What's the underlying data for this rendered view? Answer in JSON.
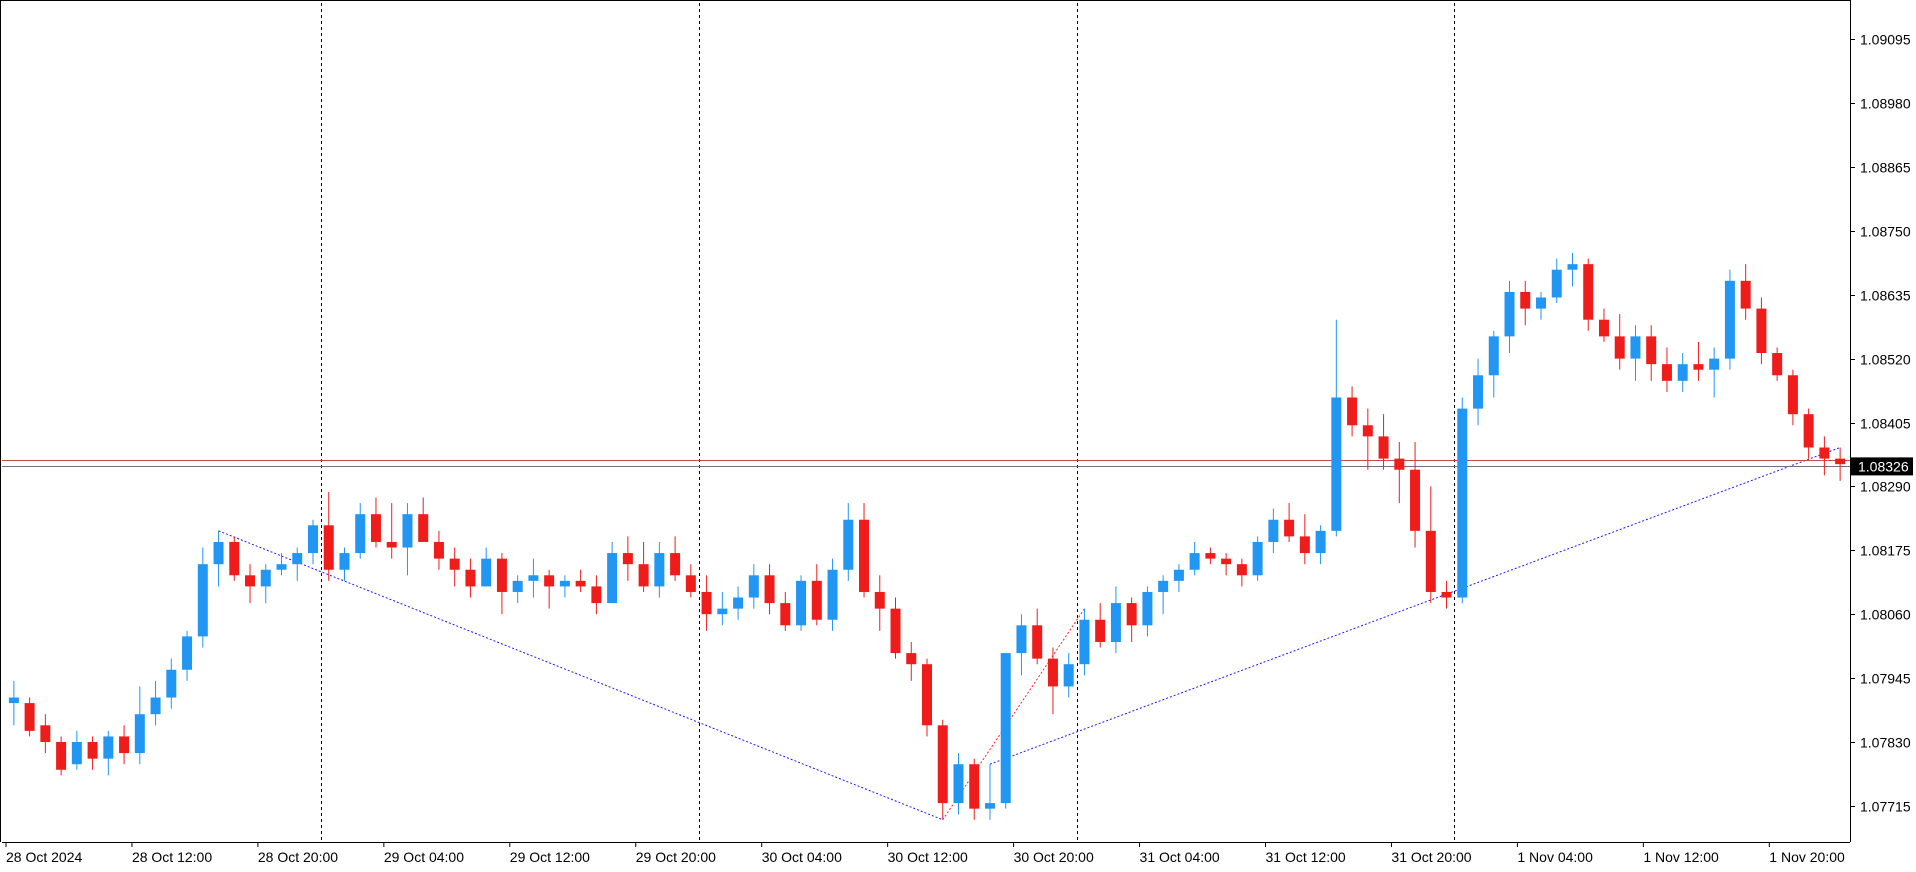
{
  "chart_data": {
    "type": "candlestick",
    "title": "",
    "xlabel": "",
    "ylabel": "",
    "ylim": [
      1.0765,
      1.0916
    ],
    "y_ticks": [
      "1.09095",
      "1.08980",
      "1.08865",
      "1.08750",
      "1.08635",
      "1.08520",
      "1.08405",
      "1.08290",
      "1.08175",
      "1.08060",
      "1.07945",
      "1.07830",
      "1.07715"
    ],
    "x_ticks": [
      "28 Oct 2024",
      "28 Oct 12:00",
      "28 Oct 20:00",
      "29 Oct 04:00",
      "29 Oct 12:00",
      "29 Oct 20:00",
      "30 Oct 04:00",
      "30 Oct 12:00",
      "30 Oct 20:00",
      "31 Oct 04:00",
      "31 Oct 12:00",
      "31 Oct 20:00",
      "1 Nov 04:00",
      "1 Nov 12:00",
      "1 Nov 20:00"
    ],
    "session_separators": [
      "28 Oct 20:00",
      "29 Oct 20:00",
      "30 Oct 20:00",
      "31 Oct 20:00"
    ],
    "current_price": "1.08326",
    "price_lines": [
      1.08338,
      1.08326
    ],
    "candle_period": "1h",
    "colors": {
      "bull": "#2196f3",
      "bear": "#ef1c1c",
      "grid": "#000000",
      "price_label_bg": "#000000",
      "price_line": "#c44b4b",
      "trend_blue": "#1a1aff",
      "trend_red": "#ff2020"
    },
    "series": [
      {
        "time": "28 Oct 00:00",
        "open": 1.079,
        "high": 1.0794,
        "low": 1.0786,
        "close": 1.0791
      },
      {
        "time": "28 Oct 01:00",
        "open": 1.079,
        "high": 1.0791,
        "low": 1.0784,
        "close": 1.0785
      },
      {
        "time": "28 Oct 02:00",
        "open": 1.0786,
        "high": 1.0788,
        "low": 1.0781,
        "close": 1.0783
      },
      {
        "time": "28 Oct 03:00",
        "open": 1.0783,
        "high": 1.0784,
        "low": 1.0777,
        "close": 1.0778
      },
      {
        "time": "28 Oct 04:00",
        "open": 1.0779,
        "high": 1.0785,
        "low": 1.0778,
        "close": 1.0783
      },
      {
        "time": "28 Oct 05:00",
        "open": 1.0783,
        "high": 1.0784,
        "low": 1.0778,
        "close": 1.078
      },
      {
        "time": "28 Oct 06:00",
        "open": 1.078,
        "high": 1.0785,
        "low": 1.0777,
        "close": 1.0784
      },
      {
        "time": "28 Oct 07:00",
        "open": 1.0784,
        "high": 1.0786,
        "low": 1.0779,
        "close": 1.0781
      },
      {
        "time": "28 Oct 08:00",
        "open": 1.0781,
        "high": 1.0793,
        "low": 1.0779,
        "close": 1.0788
      },
      {
        "time": "28 Oct 09:00",
        "open": 1.0788,
        "high": 1.0794,
        "low": 1.0786,
        "close": 1.0791
      },
      {
        "time": "28 Oct 10:00",
        "open": 1.0791,
        "high": 1.0798,
        "low": 1.0789,
        "close": 1.0796
      },
      {
        "time": "28 Oct 11:00",
        "open": 1.0796,
        "high": 1.0803,
        "low": 1.0794,
        "close": 1.0802
      },
      {
        "time": "28 Oct 12:00",
        "open": 1.0802,
        "high": 1.0818,
        "low": 1.08,
        "close": 1.0815
      },
      {
        "time": "28 Oct 13:00",
        "open": 1.0815,
        "high": 1.0821,
        "low": 1.0811,
        "close": 1.0819
      },
      {
        "time": "28 Oct 14:00",
        "open": 1.0819,
        "high": 1.082,
        "low": 1.0812,
        "close": 1.0813
      },
      {
        "time": "28 Oct 15:00",
        "open": 1.0813,
        "high": 1.0815,
        "low": 1.0808,
        "close": 1.0811
      },
      {
        "time": "28 Oct 16:00",
        "open": 1.0811,
        "high": 1.0815,
        "low": 1.0808,
        "close": 1.0814
      },
      {
        "time": "28 Oct 17:00",
        "open": 1.0814,
        "high": 1.0817,
        "low": 1.0813,
        "close": 1.0815
      },
      {
        "time": "28 Oct 18:00",
        "open": 1.0815,
        "high": 1.0818,
        "low": 1.0812,
        "close": 1.0817
      },
      {
        "time": "28 Oct 19:00",
        "open": 1.0817,
        "high": 1.0823,
        "low": 1.0815,
        "close": 1.0822
      },
      {
        "time": "28 Oct 20:00",
        "open": 1.0822,
        "high": 1.0828,
        "low": 1.0812,
        "close": 1.0814
      },
      {
        "time": "28 Oct 21:00",
        "open": 1.0814,
        "high": 1.0818,
        "low": 1.0812,
        "close": 1.0817
      },
      {
        "time": "28 Oct 22:00",
        "open": 1.0817,
        "high": 1.0826,
        "low": 1.0816,
        "close": 1.0824
      },
      {
        "time": "28 Oct 23:00",
        "open": 1.0824,
        "high": 1.0827,
        "low": 1.0818,
        "close": 1.0819
      },
      {
        "time": "29 Oct 00:00",
        "open": 1.0819,
        "high": 1.0826,
        "low": 1.0816,
        "close": 1.0818
      },
      {
        "time": "29 Oct 01:00",
        "open": 1.0818,
        "high": 1.0826,
        "low": 1.0813,
        "close": 1.0824
      },
      {
        "time": "29 Oct 02:00",
        "open": 1.0824,
        "high": 1.0827,
        "low": 1.0819,
        "close": 1.0819
      },
      {
        "time": "29 Oct 03:00",
        "open": 1.0819,
        "high": 1.0821,
        "low": 1.0814,
        "close": 1.0816
      },
      {
        "time": "29 Oct 04:00",
        "open": 1.0816,
        "high": 1.0818,
        "low": 1.0811,
        "close": 1.0814
      },
      {
        "time": "29 Oct 05:00",
        "open": 1.0814,
        "high": 1.0816,
        "low": 1.0809,
        "close": 1.0811
      },
      {
        "time": "29 Oct 06:00",
        "open": 1.0811,
        "high": 1.0818,
        "low": 1.0811,
        "close": 1.0816
      },
      {
        "time": "29 Oct 07:00",
        "open": 1.0816,
        "high": 1.0817,
        "low": 1.0806,
        "close": 1.081
      },
      {
        "time": "29 Oct 08:00",
        "open": 1.081,
        "high": 1.0813,
        "low": 1.0808,
        "close": 1.0812
      },
      {
        "time": "29 Oct 09:00",
        "open": 1.0812,
        "high": 1.0816,
        "low": 1.0809,
        "close": 1.0813
      },
      {
        "time": "29 Oct 10:00",
        "open": 1.0813,
        "high": 1.0814,
        "low": 1.0807,
        "close": 1.0811
      },
      {
        "time": "29 Oct 11:00",
        "open": 1.0811,
        "high": 1.0813,
        "low": 1.0809,
        "close": 1.0812
      },
      {
        "time": "29 Oct 12:00",
        "open": 1.0812,
        "high": 1.0814,
        "low": 1.081,
        "close": 1.0811
      },
      {
        "time": "29 Oct 13:00",
        "open": 1.0811,
        "high": 1.0813,
        "low": 1.0806,
        "close": 1.0808
      },
      {
        "time": "29 Oct 14:00",
        "open": 1.0808,
        "high": 1.0819,
        "low": 1.0808,
        "close": 1.0817
      },
      {
        "time": "29 Oct 15:00",
        "open": 1.0817,
        "high": 1.082,
        "low": 1.0812,
        "close": 1.0815
      },
      {
        "time": "29 Oct 16:00",
        "open": 1.0815,
        "high": 1.0819,
        "low": 1.081,
        "close": 1.0811
      },
      {
        "time": "29 Oct 17:00",
        "open": 1.0811,
        "high": 1.0819,
        "low": 1.0809,
        "close": 1.0817
      },
      {
        "time": "29 Oct 18:00",
        "open": 1.0817,
        "high": 1.082,
        "low": 1.0812,
        "close": 1.0813
      },
      {
        "time": "29 Oct 19:00",
        "open": 1.0813,
        "high": 1.0815,
        "low": 1.0809,
        "close": 1.081
      },
      {
        "time": "29 Oct 20:00",
        "open": 1.081,
        "high": 1.0813,
        "low": 1.0803,
        "close": 1.0806
      },
      {
        "time": "29 Oct 21:00",
        "open": 1.0806,
        "high": 1.081,
        "low": 1.0804,
        "close": 1.0807
      },
      {
        "time": "29 Oct 22:00",
        "open": 1.0807,
        "high": 1.0811,
        "low": 1.0805,
        "close": 1.0809
      },
      {
        "time": "29 Oct 23:00",
        "open": 1.0809,
        "high": 1.0815,
        "low": 1.0807,
        "close": 1.0813
      },
      {
        "time": "30 Oct 00:00",
        "open": 1.0813,
        "high": 1.0815,
        "low": 1.0806,
        "close": 1.0808
      },
      {
        "time": "30 Oct 01:00",
        "open": 1.0808,
        "high": 1.081,
        "low": 1.0803,
        "close": 1.0804
      },
      {
        "time": "30 Oct 02:00",
        "open": 1.0804,
        "high": 1.0813,
        "low": 1.0803,
        "close": 1.0812
      },
      {
        "time": "30 Oct 03:00",
        "open": 1.0812,
        "high": 1.0815,
        "low": 1.0804,
        "close": 1.0805
      },
      {
        "time": "30 Oct 04:00",
        "open": 1.0805,
        "high": 1.0816,
        "low": 1.0803,
        "close": 1.0814
      },
      {
        "time": "30 Oct 05:00",
        "open": 1.0814,
        "high": 1.0826,
        "low": 1.0812,
        "close": 1.0823
      },
      {
        "time": "30 Oct 06:00",
        "open": 1.0823,
        "high": 1.0826,
        "low": 1.0809,
        "close": 1.081
      },
      {
        "time": "30 Oct 07:00",
        "open": 1.081,
        "high": 1.0813,
        "low": 1.0803,
        "close": 1.0807
      },
      {
        "time": "30 Oct 08:00",
        "open": 1.0807,
        "high": 1.0809,
        "low": 1.0798,
        "close": 1.0799
      },
      {
        "time": "30 Oct 09:00",
        "open": 1.0799,
        "high": 1.0801,
        "low": 1.0794,
        "close": 1.0797
      },
      {
        "time": "30 Oct 10:00",
        "open": 1.0797,
        "high": 1.0798,
        "low": 1.0784,
        "close": 1.0786
      },
      {
        "time": "30 Oct 11:00",
        "open": 1.0786,
        "high": 1.0787,
        "low": 1.0769,
        "close": 1.0772
      },
      {
        "time": "30 Oct 12:00",
        "open": 1.0772,
        "high": 1.0781,
        "low": 1.077,
        "close": 1.0779
      },
      {
        "time": "30 Oct 13:00",
        "open": 1.0779,
        "high": 1.078,
        "low": 1.0769,
        "close": 1.0771
      },
      {
        "time": "30 Oct 14:00",
        "open": 1.0771,
        "high": 1.0779,
        "low": 1.0769,
        "close": 1.0772
      },
      {
        "time": "30 Oct 15:00",
        "open": 1.0772,
        "high": 1.0799,
        "low": 1.0771,
        "close": 1.0799
      },
      {
        "time": "30 Oct 16:00",
        "open": 1.0799,
        "high": 1.0806,
        "low": 1.0795,
        "close": 1.0804
      },
      {
        "time": "30 Oct 17:00",
        "open": 1.0804,
        "high": 1.0807,
        "low": 1.0797,
        "close": 1.0798
      },
      {
        "time": "30 Oct 18:00",
        "open": 1.0798,
        "high": 1.08,
        "low": 1.0788,
        "close": 1.0793
      },
      {
        "time": "30 Oct 19:00",
        "open": 1.0793,
        "high": 1.0799,
        "low": 1.0791,
        "close": 1.0797
      },
      {
        "time": "30 Oct 20:00",
        "open": 1.0797,
        "high": 1.0807,
        "low": 1.0795,
        "close": 1.0805
      },
      {
        "time": "30 Oct 21:00",
        "open": 1.0805,
        "high": 1.0808,
        "low": 1.08,
        "close": 1.0801
      },
      {
        "time": "30 Oct 22:00",
        "open": 1.0801,
        "high": 1.0811,
        "low": 1.0799,
        "close": 1.0808
      },
      {
        "time": "30 Oct 23:00",
        "open": 1.0808,
        "high": 1.0809,
        "low": 1.0801,
        "close": 1.0804
      },
      {
        "time": "31 Oct 00:00",
        "open": 1.0804,
        "high": 1.0811,
        "low": 1.0802,
        "close": 1.081
      },
      {
        "time": "31 Oct 01:00",
        "open": 1.081,
        "high": 1.0813,
        "low": 1.0806,
        "close": 1.0812
      },
      {
        "time": "31 Oct 02:00",
        "open": 1.0812,
        "high": 1.0815,
        "low": 1.081,
        "close": 1.0814
      },
      {
        "time": "31 Oct 03:00",
        "open": 1.0814,
        "high": 1.0819,
        "low": 1.0813,
        "close": 1.0817
      },
      {
        "time": "31 Oct 04:00",
        "open": 1.0817,
        "high": 1.0818,
        "low": 1.0815,
        "close": 1.0816
      },
      {
        "time": "31 Oct 05:00",
        "open": 1.0816,
        "high": 1.0817,
        "low": 1.0813,
        "close": 1.0815
      },
      {
        "time": "31 Oct 06:00",
        "open": 1.0815,
        "high": 1.0816,
        "low": 1.0811,
        "close": 1.0813
      },
      {
        "time": "31 Oct 07:00",
        "open": 1.0813,
        "high": 1.082,
        "low": 1.0812,
        "close": 1.0819
      },
      {
        "time": "31 Oct 08:00",
        "open": 1.0819,
        "high": 1.0825,
        "low": 1.0817,
        "close": 1.0823
      },
      {
        "time": "31 Oct 09:00",
        "open": 1.0823,
        "high": 1.0826,
        "low": 1.0819,
        "close": 1.082
      },
      {
        "time": "31 Oct 10:00",
        "open": 1.082,
        "high": 1.0824,
        "low": 1.0815,
        "close": 1.0817
      },
      {
        "time": "31 Oct 11:00",
        "open": 1.0817,
        "high": 1.0822,
        "low": 1.0815,
        "close": 1.0821
      },
      {
        "time": "31 Oct 12:00",
        "open": 1.0821,
        "high": 1.0859,
        "low": 1.082,
        "close": 1.0845
      },
      {
        "time": "31 Oct 13:00",
        "open": 1.0845,
        "high": 1.0847,
        "low": 1.0838,
        "close": 1.084
      },
      {
        "time": "31 Oct 14:00",
        "open": 1.084,
        "high": 1.0843,
        "low": 1.0832,
        "close": 1.0838
      },
      {
        "time": "31 Oct 15:00",
        "open": 1.0838,
        "high": 1.0842,
        "low": 1.0832,
        "close": 1.0834
      },
      {
        "time": "31 Oct 16:00",
        "open": 1.0834,
        "high": 1.0837,
        "low": 1.0826,
        "close": 1.0832
      },
      {
        "time": "31 Oct 17:00",
        "open": 1.0832,
        "high": 1.0837,
        "low": 1.0818,
        "close": 1.0821
      },
      {
        "time": "31 Oct 18:00",
        "open": 1.0821,
        "high": 1.0829,
        "low": 1.0808,
        "close": 1.081
      },
      {
        "time": "31 Oct 19:00",
        "open": 1.081,
        "high": 1.0812,
        "low": 1.0807,
        "close": 1.0809
      },
      {
        "time": "31 Oct 20:00",
        "open": 1.0809,
        "high": 1.0845,
        "low": 1.0808,
        "close": 1.0843
      },
      {
        "time": "31 Oct 21:00",
        "open": 1.0843,
        "high": 1.0852,
        "low": 1.084,
        "close": 1.0849
      },
      {
        "time": "31 Oct 22:00",
        "open": 1.0849,
        "high": 1.0857,
        "low": 1.0845,
        "close": 1.0856
      },
      {
        "time": "31 Oct 23:00",
        "open": 1.0856,
        "high": 1.0866,
        "low": 1.0853,
        "close": 1.0864
      },
      {
        "time": "1 Nov 00:00",
        "open": 1.0864,
        "high": 1.0866,
        "low": 1.0858,
        "close": 1.0861
      },
      {
        "time": "1 Nov 01:00",
        "open": 1.0861,
        "high": 1.0864,
        "low": 1.0859,
        "close": 1.0863
      },
      {
        "time": "1 Nov 02:00",
        "open": 1.0863,
        "high": 1.087,
        "low": 1.0862,
        "close": 1.0868
      },
      {
        "time": "1 Nov 03:00",
        "open": 1.0868,
        "high": 1.0871,
        "low": 1.0865,
        "close": 1.0869
      },
      {
        "time": "1 Nov 04:00",
        "open": 1.0869,
        "high": 1.087,
        "low": 1.0857,
        "close": 1.0859
      },
      {
        "time": "1 Nov 05:00",
        "open": 1.0859,
        "high": 1.0861,
        "low": 1.0855,
        "close": 1.0856
      },
      {
        "time": "1 Nov 06:00",
        "open": 1.0856,
        "high": 1.086,
        "low": 1.085,
        "close": 1.0852
      },
      {
        "time": "1 Nov 07:00",
        "open": 1.0852,
        "high": 1.0858,
        "low": 1.0848,
        "close": 1.0856
      },
      {
        "time": "1 Nov 08:00",
        "open": 1.0856,
        "high": 1.0858,
        "low": 1.0848,
        "close": 1.0851
      },
      {
        "time": "1 Nov 09:00",
        "open": 1.0851,
        "high": 1.0854,
        "low": 1.0846,
        "close": 1.0848
      },
      {
        "time": "1 Nov 10:00",
        "open": 1.0848,
        "high": 1.0853,
        "low": 1.0846,
        "close": 1.0851
      },
      {
        "time": "1 Nov 11:00",
        "open": 1.0851,
        "high": 1.0855,
        "low": 1.0848,
        "close": 1.085
      },
      {
        "time": "1 Nov 12:00",
        "open": 1.085,
        "high": 1.0854,
        "low": 1.0845,
        "close": 1.0852
      },
      {
        "time": "1 Nov 13:00",
        "open": 1.0852,
        "high": 1.0868,
        "low": 1.085,
        "close": 1.0866
      },
      {
        "time": "1 Nov 14:00",
        "open": 1.0866,
        "high": 1.0869,
        "low": 1.0859,
        "close": 1.0861
      },
      {
        "time": "1 Nov 15:00",
        "open": 1.0861,
        "high": 1.0863,
        "low": 1.0851,
        "close": 1.0853
      },
      {
        "time": "1 Nov 16:00",
        "open": 1.0853,
        "high": 1.0854,
        "low": 1.0848,
        "close": 1.0849
      },
      {
        "time": "1 Nov 17:00",
        "open": 1.0849,
        "high": 1.085,
        "low": 1.084,
        "close": 1.0842
      },
      {
        "time": "1 Nov 18:00",
        "open": 1.0842,
        "high": 1.0843,
        "low": 1.0834,
        "close": 1.0836
      },
      {
        "time": "1 Nov 19:00",
        "open": 1.0836,
        "high": 1.0838,
        "low": 1.0831,
        "close": 1.0834
      },
      {
        "time": "1 Nov 20:00",
        "open": 1.0834,
        "high": 1.0836,
        "low": 1.083,
        "close": 1.0833
      }
    ]
  }
}
